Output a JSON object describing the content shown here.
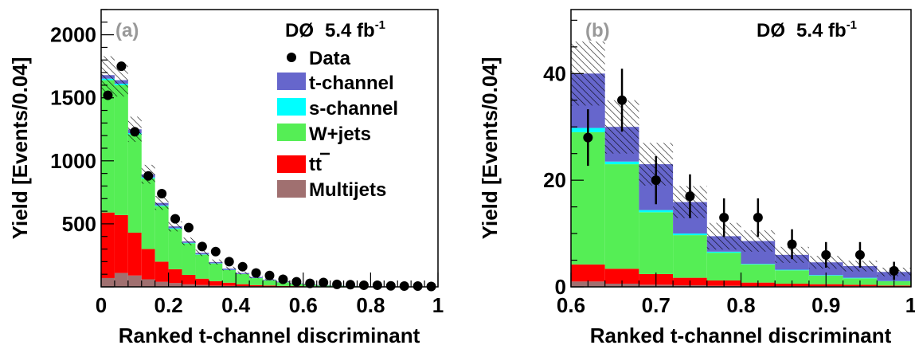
{
  "chart_data": [
    {
      "type": "bar",
      "stacked": true,
      "panel_label": "(a)",
      "experiment": "DØ",
      "luminosity": "5.4 fb",
      "luminosity_exp": "-1",
      "xlabel": "Ranked t-channel discriminant",
      "ylabel": "Yield [Events/0.04]",
      "xlim": [
        0,
        1
      ],
      "ylim": [
        0,
        2200
      ],
      "x_ticks": [
        "0",
        "0.2",
        "0.4",
        "0.6",
        "0.8",
        "1"
      ],
      "y_ticks": [
        "500",
        "1000",
        "1500",
        "2000"
      ],
      "legend_placement": "top-right",
      "bin_edges": [
        0,
        0.04,
        0.08,
        0.12,
        0.16,
        0.2,
        0.24,
        0.28,
        0.32,
        0.36,
        0.4,
        0.44,
        0.48,
        0.52,
        0.56,
        0.6,
        0.64,
        0.68,
        0.72,
        0.76,
        0.8,
        0.84,
        0.88,
        0.92,
        0.96,
        1.0
      ],
      "series": [
        {
          "name": "Multijets",
          "values": [
            70,
            110,
            90,
            60,
            40,
            30,
            20,
            15,
            10,
            8,
            6,
            4,
            3,
            2,
            2,
            1,
            1,
            1,
            1,
            0,
            0,
            0,
            0,
            0,
            0
          ]
        },
        {
          "name": "tt",
          "values": [
            520,
            460,
            340,
            240,
            160,
            110,
            75,
            50,
            35,
            25,
            15,
            10,
            8,
            5,
            4,
            3,
            2,
            2,
            1,
            1,
            1,
            1,
            0,
            0,
            0
          ]
        },
        {
          "name": "W+jets",
          "values": [
            1050,
            1030,
            780,
            560,
            440,
            320,
            250,
            190,
            140,
            100,
            80,
            55,
            40,
            28,
            18,
            12,
            8,
            6,
            4,
            3,
            2,
            2,
            1,
            1,
            1
          ]
        },
        {
          "name": "s-channel",
          "values": [
            12,
            12,
            10,
            8,
            6,
            5,
            4,
            3,
            2,
            2,
            1,
            1,
            1,
            1,
            0,
            0,
            0,
            0,
            0,
            0,
            0,
            0,
            0,
            0,
            0
          ]
        },
        {
          "name": "t-channel",
          "values": [
            28,
            28,
            30,
            25,
            20,
            15,
            12,
            12,
            10,
            10,
            8,
            8,
            6,
            6,
            4,
            4,
            3,
            2,
            2,
            1,
            1,
            1,
            1,
            1,
            0
          ]
        }
      ],
      "uncertainty": [
        150,
        130,
        100,
        75,
        55,
        40,
        30,
        25,
        20,
        15,
        12,
        10,
        8,
        6,
        5,
        4,
        3,
        3,
        2,
        2,
        2,
        1,
        1,
        1,
        1
      ],
      "data": {
        "name": "Data",
        "x": [
          0.02,
          0.06,
          0.1,
          0.14,
          0.18,
          0.22,
          0.26,
          0.3,
          0.34,
          0.38,
          0.42,
          0.46,
          0.5,
          0.54,
          0.58,
          0.62,
          0.66,
          0.7,
          0.74,
          0.78,
          0.82,
          0.86,
          0.9,
          0.94,
          0.98
        ],
        "y": [
          1520,
          1750,
          1230,
          880,
          740,
          540,
          470,
          320,
          280,
          200,
          160,
          110,
          90,
          60,
          40,
          28,
          35,
          20,
          17,
          13,
          13,
          8,
          6,
          6,
          3
        ]
      }
    },
    {
      "type": "bar",
      "stacked": true,
      "panel_label": "(b)",
      "experiment": "DØ",
      "luminosity": "5.4 fb",
      "luminosity_exp": "-1",
      "xlabel": "Ranked t-channel discriminant",
      "ylabel": "Yield [Events/0.04]",
      "xlim": [
        0.6,
        1
      ],
      "ylim": [
        0,
        52
      ],
      "x_ticks": [
        "0.6",
        "0.7",
        "0.8",
        "0.9",
        "1"
      ],
      "y_ticks": [
        "0",
        "20",
        "40"
      ],
      "bin_edges": [
        0.6,
        0.64,
        0.68,
        0.72,
        0.76,
        0.8,
        0.84,
        0.88,
        0.92,
        0.96,
        1.0
      ],
      "series": [
        {
          "name": "Multijets",
          "values": [
            1.0,
            0.6,
            0.4,
            0.3,
            0.2,
            0.1,
            0.1,
            0.1,
            0.1,
            0.05
          ]
        },
        {
          "name": "tt",
          "values": [
            3.2,
            2.8,
            2.0,
            1.4,
            1.0,
            0.7,
            0.5,
            0.4,
            0.3,
            0.2
          ]
        },
        {
          "name": "W+jets",
          "values": [
            24.8,
            19.6,
            11.6,
            8.0,
            5.2,
            3.4,
            2.5,
            1.6,
            1.2,
            0.8
          ]
        },
        {
          "name": "s-channel",
          "values": [
            0.8,
            0.5,
            0.4,
            0.3,
            0.2,
            0.1,
            0.1,
            0.1,
            0.1,
            0.05
          ]
        },
        {
          "name": "t-channel",
          "values": [
            10.2,
            6.5,
            8.6,
            5.9,
            2.9,
            4.3,
            2.8,
            2.4,
            2.2,
            1.7
          ]
        }
      ],
      "uncertainty": [
        6,
        5,
        4,
        3,
        2.5,
        2,
        1.5,
        1.2,
        1,
        0.8
      ],
      "data": {
        "name": "Data",
        "x": [
          0.62,
          0.66,
          0.7,
          0.74,
          0.78,
          0.82,
          0.86,
          0.9,
          0.94,
          0.98
        ],
        "y": [
          28,
          35,
          20,
          17,
          13,
          13,
          8,
          6,
          6,
          3
        ],
        "err": [
          5.3,
          5.9,
          4.5,
          4.1,
          3.6,
          3.6,
          2.8,
          2.4,
          2.4,
          1.7
        ]
      }
    }
  ],
  "colors": {
    "Multijets": "#a07070",
    "tt": "#ff0000",
    "W+jets": "#55ee55",
    "s-channel": "#00ffff",
    "t-channel": "#6666cc",
    "panel_label": "#999999"
  },
  "legend": {
    "data": "Data",
    "t_channel": "t-channel",
    "s_channel": "s-channel",
    "w_jets": "W+jets",
    "tt": "tt",
    "multijets": "Multijets"
  }
}
